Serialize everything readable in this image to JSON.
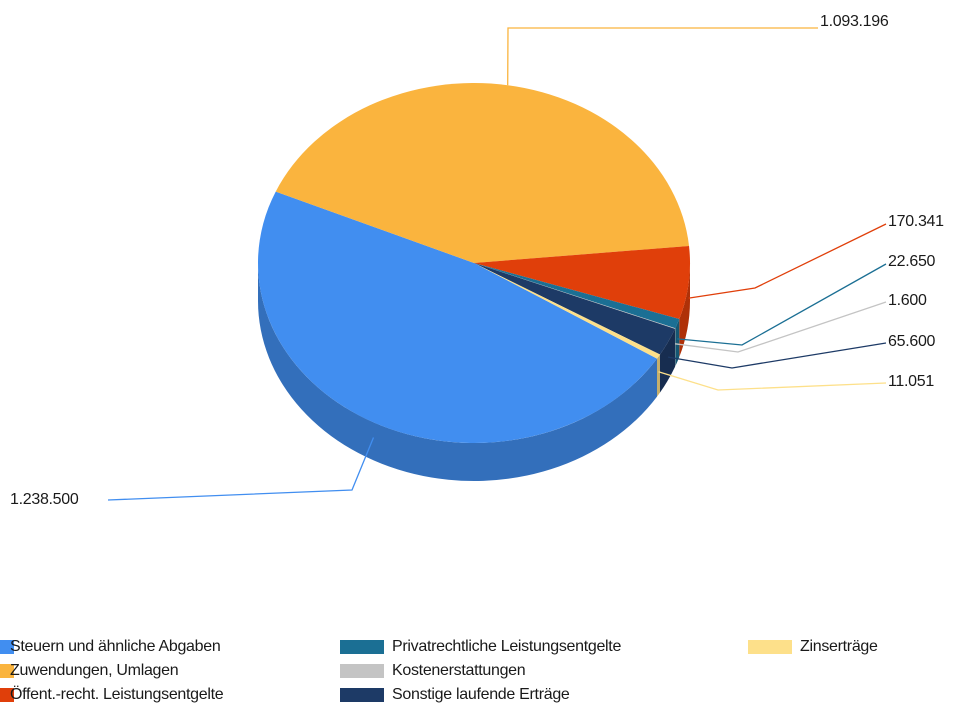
{
  "chart_data": {
    "type": "pie3d",
    "categories": [
      "Steuern und ähnliche Abgaben",
      "Zuwendungen, Umlagen",
      "Öffent.-recht. Leistungsentgelte",
      "Privatrechtliche Leistungsentgelte",
      "Kostenerstattungen",
      "Sonstige laufende Erträge",
      "Zinserträge"
    ],
    "values": [
      1238500,
      1093196,
      170341,
      22650,
      1600,
      65600,
      11051
    ],
    "value_labels": [
      "1.238.500",
      "1.093.196",
      "170.341",
      "22.650",
      "1.600",
      "65.600",
      "11.051"
    ],
    "colors": [
      "#418ef0",
      "#fab43e",
      "#e03f0a",
      "#1b6f94",
      "#c4c4c4",
      "#1d3a66",
      "#fde08a"
    ],
    "legend": "bottom"
  }
}
